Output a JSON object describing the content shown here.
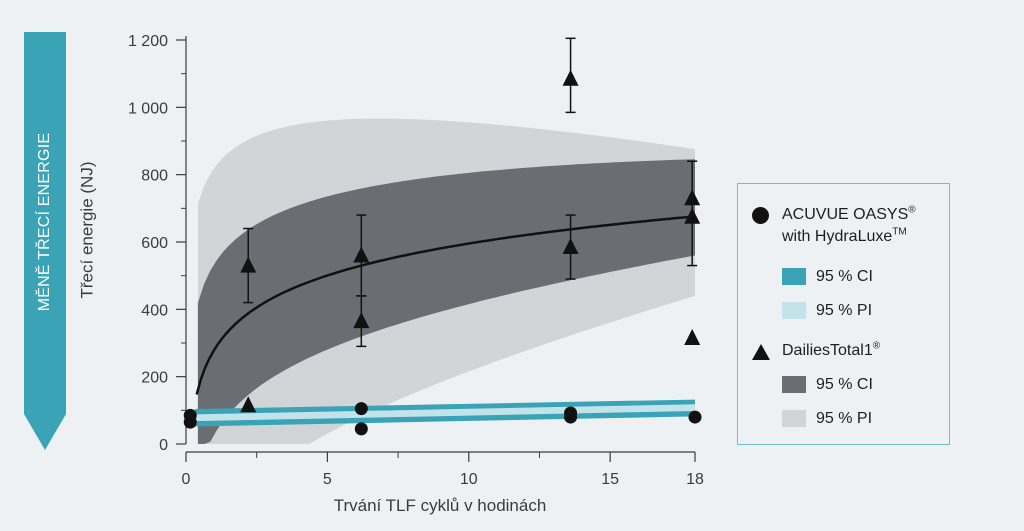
{
  "side_banner": {
    "text": "MĚNĚ TŘECÍ ENERGIE",
    "color": "#3aa3b6"
  },
  "chart_data": {
    "type": "scatter",
    "title": "",
    "xlabel": "Trvání TLF cyklů v hodinách",
    "ylabel": "Třecí energie (NJ)",
    "xlim": [
      0,
      18
    ],
    "ylim": [
      0,
      1200
    ],
    "x_ticks": [
      0,
      5,
      10,
      15,
      18
    ],
    "y_ticks": [
      0,
      200,
      400,
      600,
      800,
      1000,
      1200
    ],
    "x_tick_labels": [
      "0",
      "5",
      "10",
      "15",
      "18"
    ],
    "y_tick_labels": [
      "0",
      "200",
      "400",
      "600",
      "800",
      "1 000",
      "1 200"
    ],
    "grid": false,
    "legend_position": "right",
    "series": [
      {
        "name": "ACUVUE OASYS® with HydraLuxe™",
        "marker": "circle",
        "color": "#111111",
        "points": [
          {
            "x": 0.15,
            "y": 85
          },
          {
            "x": 0.15,
            "y": 65
          },
          {
            "x": 6.2,
            "y": 105
          },
          {
            "x": 6.2,
            "y": 45
          },
          {
            "x": 13.6,
            "y": 92
          },
          {
            "x": 13.6,
            "y": 80
          },
          {
            "x": 18.0,
            "y": 80
          }
        ],
        "fit": [
          [
            0.3,
            78
          ],
          [
            18,
            108
          ]
        ],
        "ci": {
          "lower": [
            [
              0.3,
              52
            ],
            [
              18,
              82
            ]
          ],
          "upper": [
            [
              0.3,
              104
            ],
            [
              18,
              132
            ]
          ],
          "color": "#3aa3b6"
        },
        "pi": {
          "lower": [
            [
              0.3,
              68
            ],
            [
              18,
              98
            ]
          ],
          "upper": [
            [
              0.3,
              88
            ],
            [
              18,
              118
            ]
          ],
          "color": "#c3e3ea"
        }
      },
      {
        "name": "DailiesTotal1®",
        "marker": "triangle",
        "color": "#111111",
        "points": [
          {
            "x": 2.2,
            "y": 530,
            "err_low": 420,
            "err_high": 640
          },
          {
            "x": 2.2,
            "y": 115
          },
          {
            "x": 6.2,
            "y": 560,
            "err_low": 440,
            "err_high": 680
          },
          {
            "x": 6.2,
            "y": 365,
            "err_low": 290,
            "err_high": 440
          },
          {
            "x": 13.6,
            "y": 1085,
            "err_low": 985,
            "err_high": 1205
          },
          {
            "x": 13.6,
            "y": 585,
            "err_low": 490,
            "err_high": 680
          },
          {
            "x": 17.9,
            "y": 730,
            "err_low": 530,
            "err_high": 840
          },
          {
            "x": 17.9,
            "y": 675
          },
          {
            "x": 17.9,
            "y": 315
          }
        ],
        "fit_model": "log",
        "fit_params": {
          "a": 280,
          "b": 137
        },
        "ci_color": "#6a6e74",
        "pi_color": "#d2d5d8"
      }
    ]
  },
  "legend": {
    "s1_name_line1": "ACUVUE OASYS",
    "s1_name_line1_sup": "®",
    "s1_name_line2": "with HydraLuxe",
    "s1_name_line2_sup": "TM",
    "s2_name": "DailiesTotal1",
    "s2_name_sup": "®",
    "ci_label": "95 % CI",
    "pi_label": "95 % PI",
    "border_color": "#6cc0cf"
  }
}
